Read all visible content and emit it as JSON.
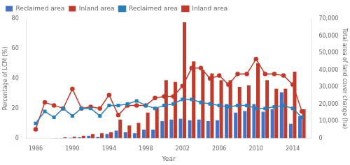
{
  "chart_data": {
    "type": "bar",
    "xlabel": "Year",
    "ylabel": "Percentage of LCM (%)",
    "y2label": "Total area of land cover change (ha)",
    "x": [
      1986,
      1987,
      1988,
      1989,
      1990,
      1991,
      1992,
      1993,
      1994,
      1995,
      1996,
      1997,
      1998,
      1999,
      2000,
      2001,
      2002,
      2003,
      2004,
      2005,
      2006,
      2007,
      2008,
      2009,
      2010,
      2011,
      2012,
      2013,
      2014,
      2015
    ],
    "xlim": [
      1985,
      2016
    ],
    "xticks": [
      1986,
      1990,
      1994,
      1998,
      2002,
      2006,
      2010,
      2014
    ],
    "ylim": [
      0,
      80
    ],
    "yticks": [
      0,
      20,
      40,
      60,
      80
    ],
    "y2lim": [
      0,
      70000
    ],
    "y2ticks": [
      0,
      {
        "value": 10000,
        "label": "10,000"
      },
      {
        "value": 20000,
        "label": "20,000"
      },
      {
        "value": 30000,
        "label": "30,000"
      },
      {
        "value": 40000,
        "label": "40,000"
      },
      {
        "value": 50000,
        "label": "50,000"
      },
      {
        "value": 60000,
        "label": "60,000"
      },
      {
        "value": 70000,
        "label": "70,000"
      }
    ],
    "grid": false,
    "legend": "upper left",
    "series": [
      {
        "name": "Reclaimed area",
        "type": "bar",
        "axis": "y2",
        "color": "#4472c4",
        "values": [
          0,
          0,
          100,
          200,
          300,
          500,
          1500,
          800,
          2500,
          4500,
          3500,
          3000,
          5000,
          5000,
          10000,
          11000,
          11500,
          10500,
          11000,
          10000,
          10500,
          20000,
          15000,
          16000,
          20000,
          15500,
          17000,
          27000,
          8500,
          13000
        ]
      },
      {
        "name": "Inland area",
        "type": "bar",
        "axis": "y2",
        "color": "#c0392b",
        "values": [
          0,
          0,
          200,
          500,
          900,
          1500,
          2500,
          3000,
          3500,
          11000,
          7500,
          9000,
          15000,
          18000,
          34000,
          33000,
          68000,
          45000,
          40000,
          38000,
          34000,
          34000,
          30000,
          31000,
          44000,
          34000,
          29000,
          29000,
          39000,
          17000
        ]
      },
      {
        "name": "Reclaimed area",
        "type": "line",
        "color": "#2980b9",
        "marker": "square",
        "values": [
          10.0,
          18.0,
          14.0,
          20.0,
          15.0,
          20.0,
          20.0,
          15.0,
          22.0,
          22.0,
          23.0,
          25.0,
          22.0,
          20.0,
          22.0,
          23.0,
          26.0,
          26.0,
          24.0,
          23.0,
          22.0,
          21.0,
          22.0,
          22.0,
          20.0,
          20.0,
          21.0,
          22.0,
          20.0,
          14.0
        ]
      },
      {
        "name": "Inland area",
        "type": "line",
        "color": "#c0392b",
        "marker": "circle",
        "values": [
          6.0,
          24.0,
          22.0,
          20.0,
          33.0,
          20.0,
          21.0,
          20.0,
          29.0,
          15.5,
          22.0,
          22.0,
          22.0,
          27.0,
          28.0,
          28.0,
          35.0,
          47.0,
          47.0,
          40.0,
          42.0,
          36.0,
          43.0,
          43.0,
          53.0,
          43.0,
          43.0,
          42.0,
          36.0,
          18.0
        ]
      }
    ]
  }
}
